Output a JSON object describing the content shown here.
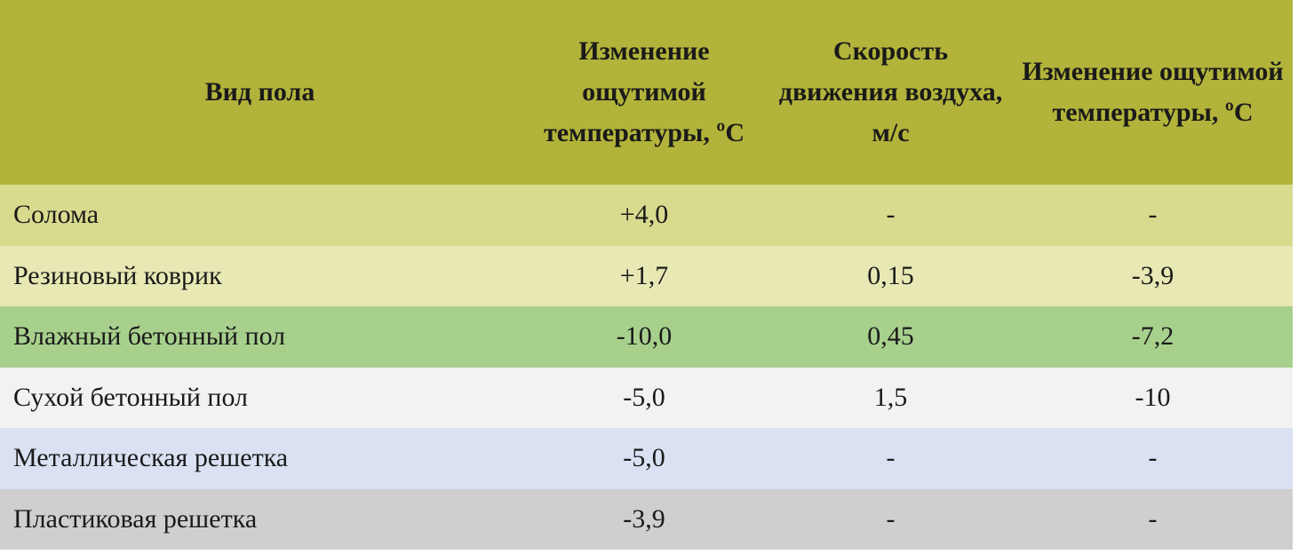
{
  "table": {
    "header": [
      "Вид пола",
      "Изменение ощутимой температуры, ºС",
      "Скорость движения воздуха, м/с",
      "Изменение ощутимой температуры, ºС"
    ],
    "rows": [
      [
        "Солома",
        "+4,0",
        "-",
        "-"
      ],
      [
        "Резиновый коврик",
        "+1,7",
        "0,15",
        "-3,9"
      ],
      [
        "Влажный бетонный пол",
        "-10,0",
        "0,45",
        "-7,2"
      ],
      [
        "Сухой бетонный пол",
        "-5,0",
        "1,5",
        "-10"
      ],
      [
        "Металлическая решетка",
        "-5,0",
        "-",
        "-"
      ],
      [
        "Пластиковая решетка",
        "-3,9",
        "-",
        "-"
      ]
    ]
  }
}
